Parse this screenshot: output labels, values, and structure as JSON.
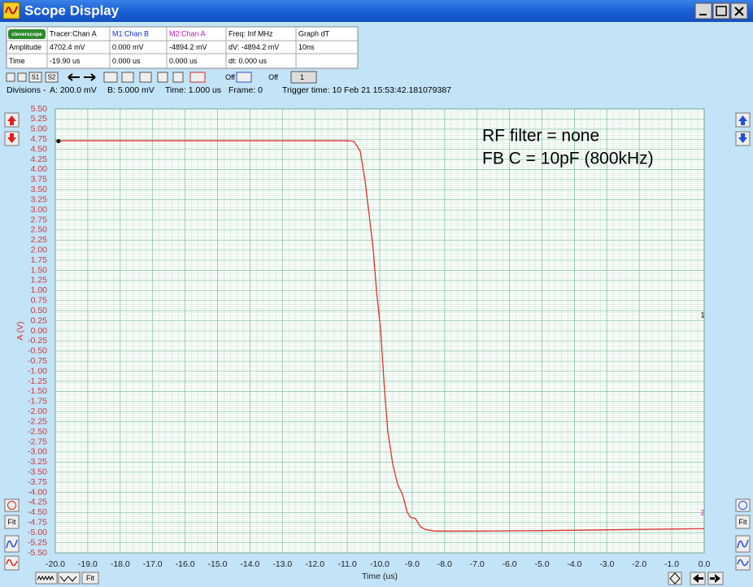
{
  "window": {
    "title": "Scope Display"
  },
  "info_table": {
    "logo": "cleverscope",
    "rows": [
      [
        "Tracer:Chan A",
        "M1:Chan B",
        "M2:Chan A",
        "Freq: Inf MHz",
        "Graph dT"
      ],
      [
        "Amplitude",
        "4702.4 mV",
        "0.000 mV",
        "-4894.2 mV",
        "dV: -4894.2 mV",
        "10ns"
      ],
      [
        "Time",
        "-19.90 us",
        "0.000 us",
        "0.000 us",
        "dt:  0.000 us"
      ]
    ]
  },
  "toolbar": {
    "labels": [
      "S1",
      "S2",
      "Off",
      "Off",
      "1"
    ]
  },
  "divisions": [
    "Divisions -",
    "A: 200.0 mV",
    "B: 5.000 mV",
    "Time: 1.000 us",
    "Frame: 0",
    "Trigger time: 10 Feb 21 15:53:42.181079387"
  ],
  "fit_buttons": [
    "Fit",
    "Fit",
    "Fit"
  ],
  "chart_data": {
    "type": "line",
    "color": "#e03030",
    "grid": true,
    "xlabel": "Time (us)",
    "ylabel": "A (V)",
    "annotations": [
      "RF filter = none",
      "FB C = 10pF (800kHz)"
    ],
    "cursor_labels": [
      "1",
      "2"
    ],
    "tracer": {
      "x": -19.9,
      "y": 4.7024
    },
    "x": [
      -20,
      -15,
      -11,
      -10.8,
      -10.6,
      -10.45,
      -10.3,
      -10.2,
      -10.1,
      -9.97,
      -9.85,
      -9.75,
      -9.6,
      -9.45,
      -9.3,
      -9.15,
      -9.05,
      -8.9,
      -8.75,
      -8.6,
      -8.3,
      -7,
      -5,
      -3,
      -1,
      0
    ],
    "values": [
      4.71,
      4.71,
      4.71,
      4.7,
      4.45,
      3.7,
      2.7,
      2.0,
      1.0,
      0,
      -1.5,
      -2.5,
      -3.3,
      -3.8,
      -4.05,
      -4.5,
      -4.62,
      -4.65,
      -4.85,
      -4.92,
      -4.96,
      -4.96,
      -4.95,
      -4.93,
      -4.91,
      -4.9
    ],
    "xlim": [
      -20,
      0
    ],
    "ylim": [
      -5.5,
      5.5
    ],
    "xticks": [
      {
        "value": -20,
        "label": "-20.0"
      },
      {
        "value": -19,
        "label": "-19.0"
      },
      {
        "value": -18,
        "label": "-18.0"
      },
      {
        "value": -17,
        "label": "-17.0"
      },
      {
        "value": -16,
        "label": "-16.0"
      },
      {
        "value": -15,
        "label": "-15.0"
      },
      {
        "value": -14,
        "label": "-14.0"
      },
      {
        "value": -13,
        "label": "-13.0"
      },
      {
        "value": -12,
        "label": "-12.0"
      },
      {
        "value": -11,
        "label": "-11.0"
      },
      {
        "value": -10,
        "label": "-10.0"
      },
      {
        "value": -9,
        "label": "-9.0"
      },
      {
        "value": -8,
        "label": "-8.0"
      },
      {
        "value": -7,
        "label": "-7.0"
      },
      {
        "value": -6,
        "label": "-6.0"
      },
      {
        "value": -5,
        "label": "-5.0"
      },
      {
        "value": -4,
        "label": "-4.0"
      },
      {
        "value": -3,
        "label": "-3.0"
      },
      {
        "value": -2,
        "label": "-2.0"
      },
      {
        "value": -1,
        "label": "-1.0"
      },
      {
        "value": 0,
        "label": "0.0"
      }
    ],
    "yticks": [
      {
        "value": 5.5,
        "label": "5.50"
      },
      {
        "value": 5.25,
        "label": "5.25"
      },
      {
        "value": 5,
        "label": "5.00"
      },
      {
        "value": 4.75,
        "label": "4.75"
      },
      {
        "value": 4.5,
        "label": "4.50"
      },
      {
        "value": 4.25,
        "label": "4.25"
      },
      {
        "value": 4,
        "label": "4.00"
      },
      {
        "value": 3.75,
        "label": "3.75"
      },
      {
        "value": 3.5,
        "label": "3.50"
      },
      {
        "value": 3.25,
        "label": "3.25"
      },
      {
        "value": 3,
        "label": "3.00"
      },
      {
        "value": 2.75,
        "label": "2.75"
      },
      {
        "value": 2.5,
        "label": "2.50"
      },
      {
        "value": 2.25,
        "label": "2.25"
      },
      {
        "value": 2,
        "label": "2.00"
      },
      {
        "value": 1.75,
        "label": "1.75"
      },
      {
        "value": 1.5,
        "label": "1.50"
      },
      {
        "value": 1.25,
        "label": "1.25"
      },
      {
        "value": 1,
        "label": "1.00"
      },
      {
        "value": 0.75,
        "label": "0.75"
      },
      {
        "value": 0.5,
        "label": "0.50"
      },
      {
        "value": 0.25,
        "label": "0.25"
      },
      {
        "value": 0,
        "label": "0.00"
      },
      {
        "value": -0.25,
        "label": "-0.25"
      },
      {
        "value": -0.5,
        "label": "-0.50"
      },
      {
        "value": -0.75,
        "label": "-0.75"
      },
      {
        "value": -1,
        "label": "-1.00"
      },
      {
        "value": -1.25,
        "label": "-1.25"
      },
      {
        "value": -1.5,
        "label": "-1.50"
      },
      {
        "value": -1.75,
        "label": "-1.75"
      },
      {
        "value": -2,
        "label": "-2.00"
      },
      {
        "value": -2.25,
        "label": "-2.25"
      },
      {
        "value": -2.5,
        "label": "-2.50"
      },
      {
        "value": -2.75,
        "label": "-2.75"
      },
      {
        "value": -3,
        "label": "-3.00"
      },
      {
        "value": -3.25,
        "label": "-3.25"
      },
      {
        "value": -3.5,
        "label": "-3.50"
      },
      {
        "value": -3.75,
        "label": "-3.75"
      },
      {
        "value": -4,
        "label": "-4.00"
      },
      {
        "value": -4.25,
        "label": "-4.25"
      },
      {
        "value": -4.5,
        "label": "-4.50"
      },
      {
        "value": -4.75,
        "label": "-4.75"
      },
      {
        "value": -5,
        "label": "-5.00"
      },
      {
        "value": -5.25,
        "label": "-5.25"
      },
      {
        "value": -5.5,
        "label": "-5.50"
      }
    ]
  }
}
